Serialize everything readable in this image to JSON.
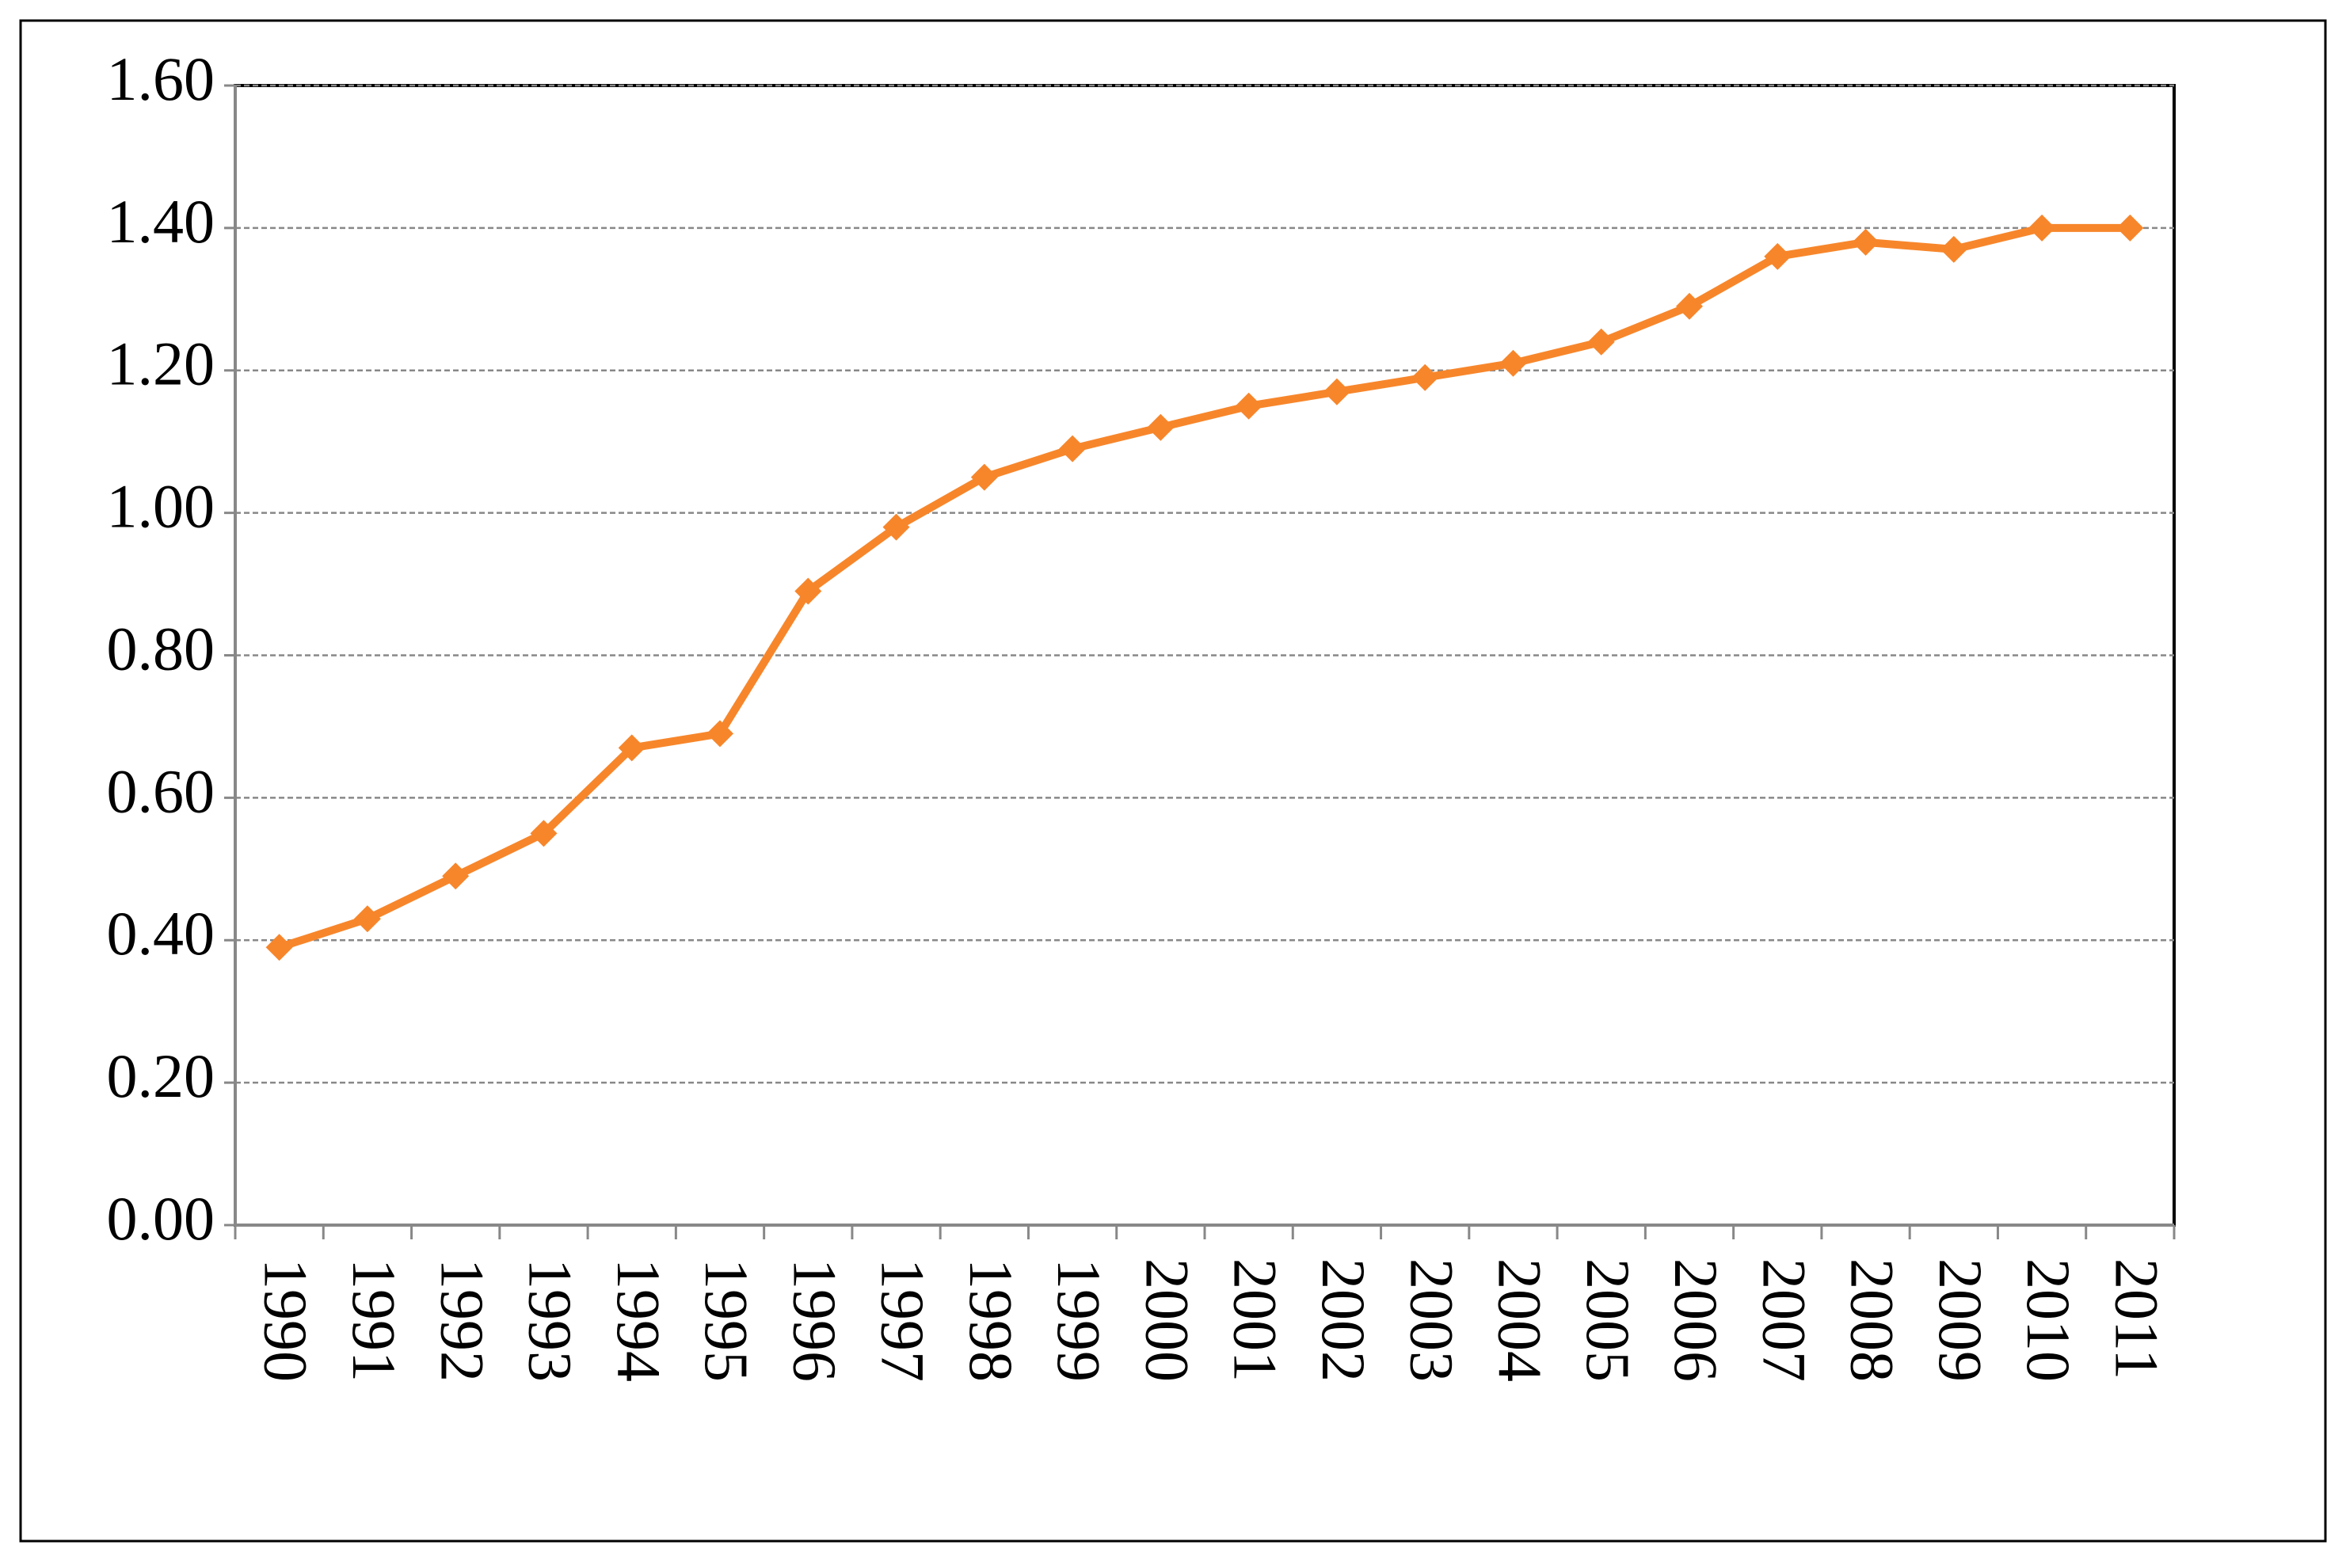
{
  "chart_data": {
    "type": "line",
    "categories": [
      "1990",
      "1991",
      "1992",
      "1993",
      "1994",
      "1995",
      "1996",
      "1997",
      "1998",
      "1999",
      "2000",
      "2001",
      "2002",
      "2003",
      "2004",
      "2005",
      "2006",
      "2007",
      "2008",
      "2009",
      "2010",
      "2011"
    ],
    "series": [
      {
        "color": "#f7862b",
        "values": [
          0.39,
          0.43,
          0.49,
          0.55,
          0.67,
          0.69,
          0.89,
          0.98,
          1.05,
          1.09,
          1.12,
          1.15,
          1.17,
          1.19,
          1.21,
          1.24,
          1.29,
          1.36,
          1.38,
          1.37,
          1.4,
          1.4
        ]
      }
    ],
    "ylim": [
      0,
      1.6
    ],
    "yticks": [
      {
        "value": 0,
        "label": "0.00"
      },
      {
        "value": 0.2,
        "label": "0.20"
      },
      {
        "value": 0.4,
        "label": "0.40"
      },
      {
        "value": 0.6,
        "label": "0.60"
      },
      {
        "value": 0.8,
        "label": "0.80"
      },
      {
        "value": 1.0,
        "label": "1.00"
      },
      {
        "value": 1.2,
        "label": "1.20"
      },
      {
        "value": 1.4,
        "label": "1.40"
      },
      {
        "value": 1.6,
        "label": "1.60"
      }
    ],
    "grid": true
  }
}
